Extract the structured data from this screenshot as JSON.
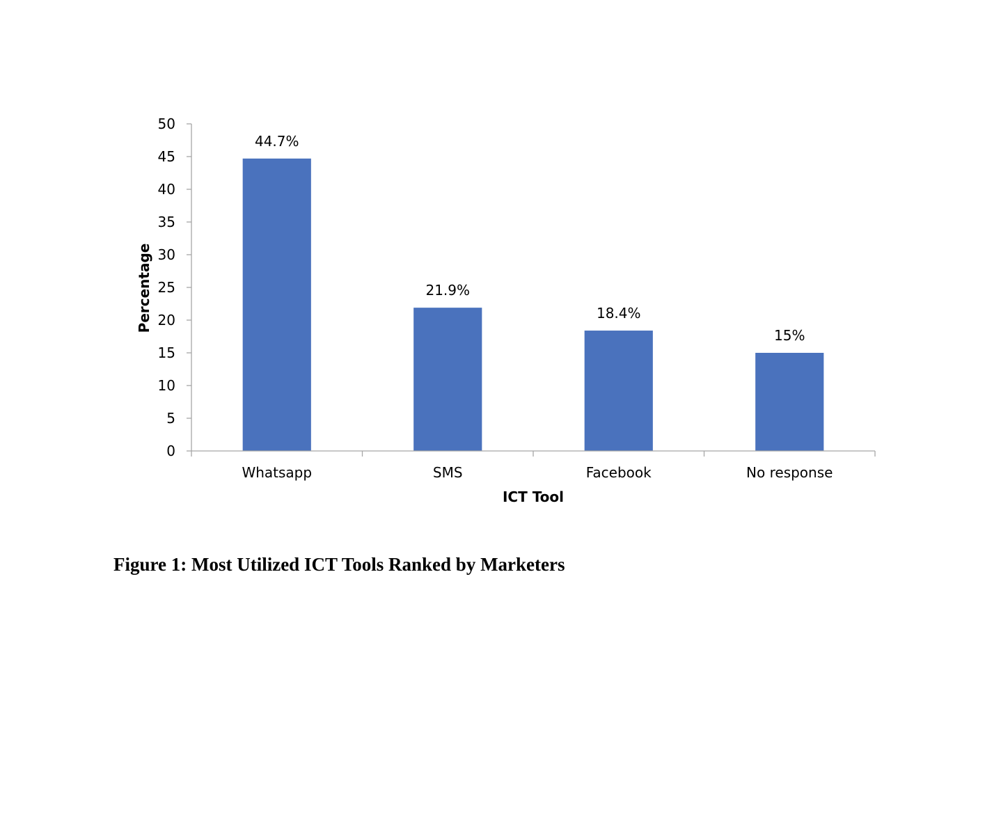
{
  "chart_data": {
    "type": "bar",
    "categories": [
      "Whatsapp",
      "SMS",
      "Facebook",
      "No response"
    ],
    "values": [
      44.7,
      21.9,
      18.4,
      15
    ],
    "data_labels": [
      "44.7%",
      "21.9%",
      "18.4%",
      "15%"
    ],
    "xlabel": "ICT Tool",
    "ylabel": "Percentage",
    "ylim": [
      0,
      50
    ],
    "yticks": [
      0,
      5,
      10,
      15,
      20,
      25,
      30,
      35,
      40,
      45,
      50
    ],
    "grid": false,
    "legend": "none",
    "bar_color": "#4A72BD",
    "axis_color": "#A6A6A6"
  },
  "caption": "Figure 1: Most Utilized ICT Tools Ranked by Marketers"
}
